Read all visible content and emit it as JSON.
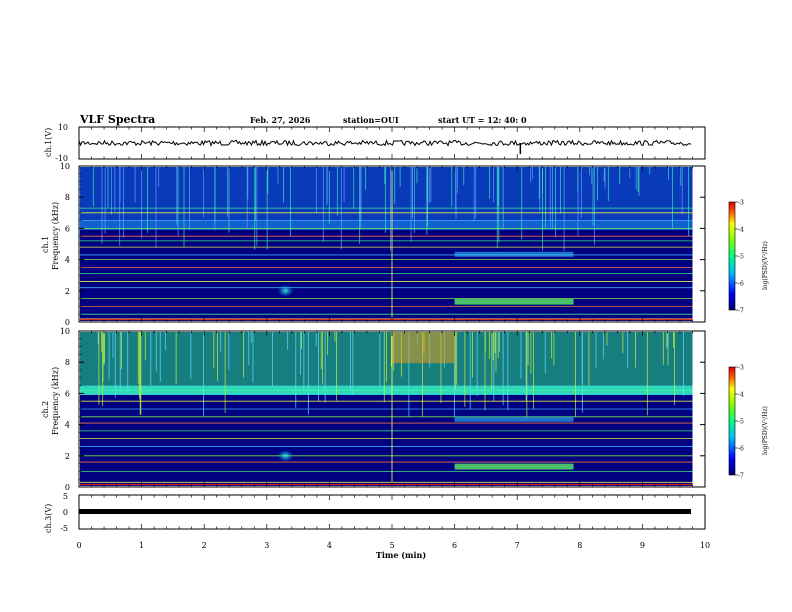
{
  "header": {
    "title": "VLF Spectra",
    "date": "Feb. 27, 2026",
    "station": "station=OUI",
    "start": "start  UT =   12: 40: 0"
  },
  "chart_data": {
    "type": "heatmap",
    "x": {
      "label": "Time  (min)",
      "range": [
        0,
        10
      ],
      "ticks": [
        "0",
        "1",
        "2",
        "3",
        "4",
        "5",
        "6",
        "7",
        "8",
        "9",
        "10"
      ]
    },
    "panels": [
      {
        "id": "ch1-waveform",
        "ylabel": "ch.1(V)",
        "ylim": [
          -10,
          10
        ],
        "ticks": [
          "10",
          "-10"
        ],
        "trace": "constant ~0 V with noise, spike near t=7.0"
      },
      {
        "id": "ch1-spectrogram",
        "ylabel": "ch.1\nFrequency  (kHz)",
        "ylim": [
          0,
          10
        ],
        "ticks": [
          "0",
          "2",
          "4",
          "6",
          "8",
          "10"
        ]
      },
      {
        "id": "ch2-spectrogram",
        "ylabel": "ch.2\nFrequency  (kHz)",
        "ylim": [
          0,
          10
        ],
        "ticks": [
          "0",
          "2",
          "4",
          "6",
          "8",
          "10"
        ]
      },
      {
        "id": "ch3-waveform",
        "ylabel": "ch.3(V)",
        "ylim": [
          -5,
          5
        ],
        "ticks": [
          "5",
          "0",
          "-5"
        ],
        "trace": "constant ~ -1 V"
      }
    ],
    "colorbar": {
      "label": "log(PSD)(V²/Hz)",
      "range": [
        -7,
        -3
      ],
      "ticks": [
        "-3",
        "-4",
        "-5",
        "-6",
        "-7"
      ]
    },
    "data_end_min": 9.8,
    "ch1_horizontal_lines_khz": [
      0.2,
      0.5,
      1.0,
      1.5,
      2.2,
      2.6,
      3.1,
      3.5,
      4.0,
      4.3,
      4.8,
      5.2,
      5.5,
      6.0,
      6.5,
      7.0,
      7.3
    ],
    "ch2_horizontal_lines_khz": [
      0.3,
      1.0,
      1.6,
      2.0,
      2.6,
      3.1,
      3.6,
      4.1,
      4.5,
      5.0,
      5.5,
      6.2
    ]
  }
}
